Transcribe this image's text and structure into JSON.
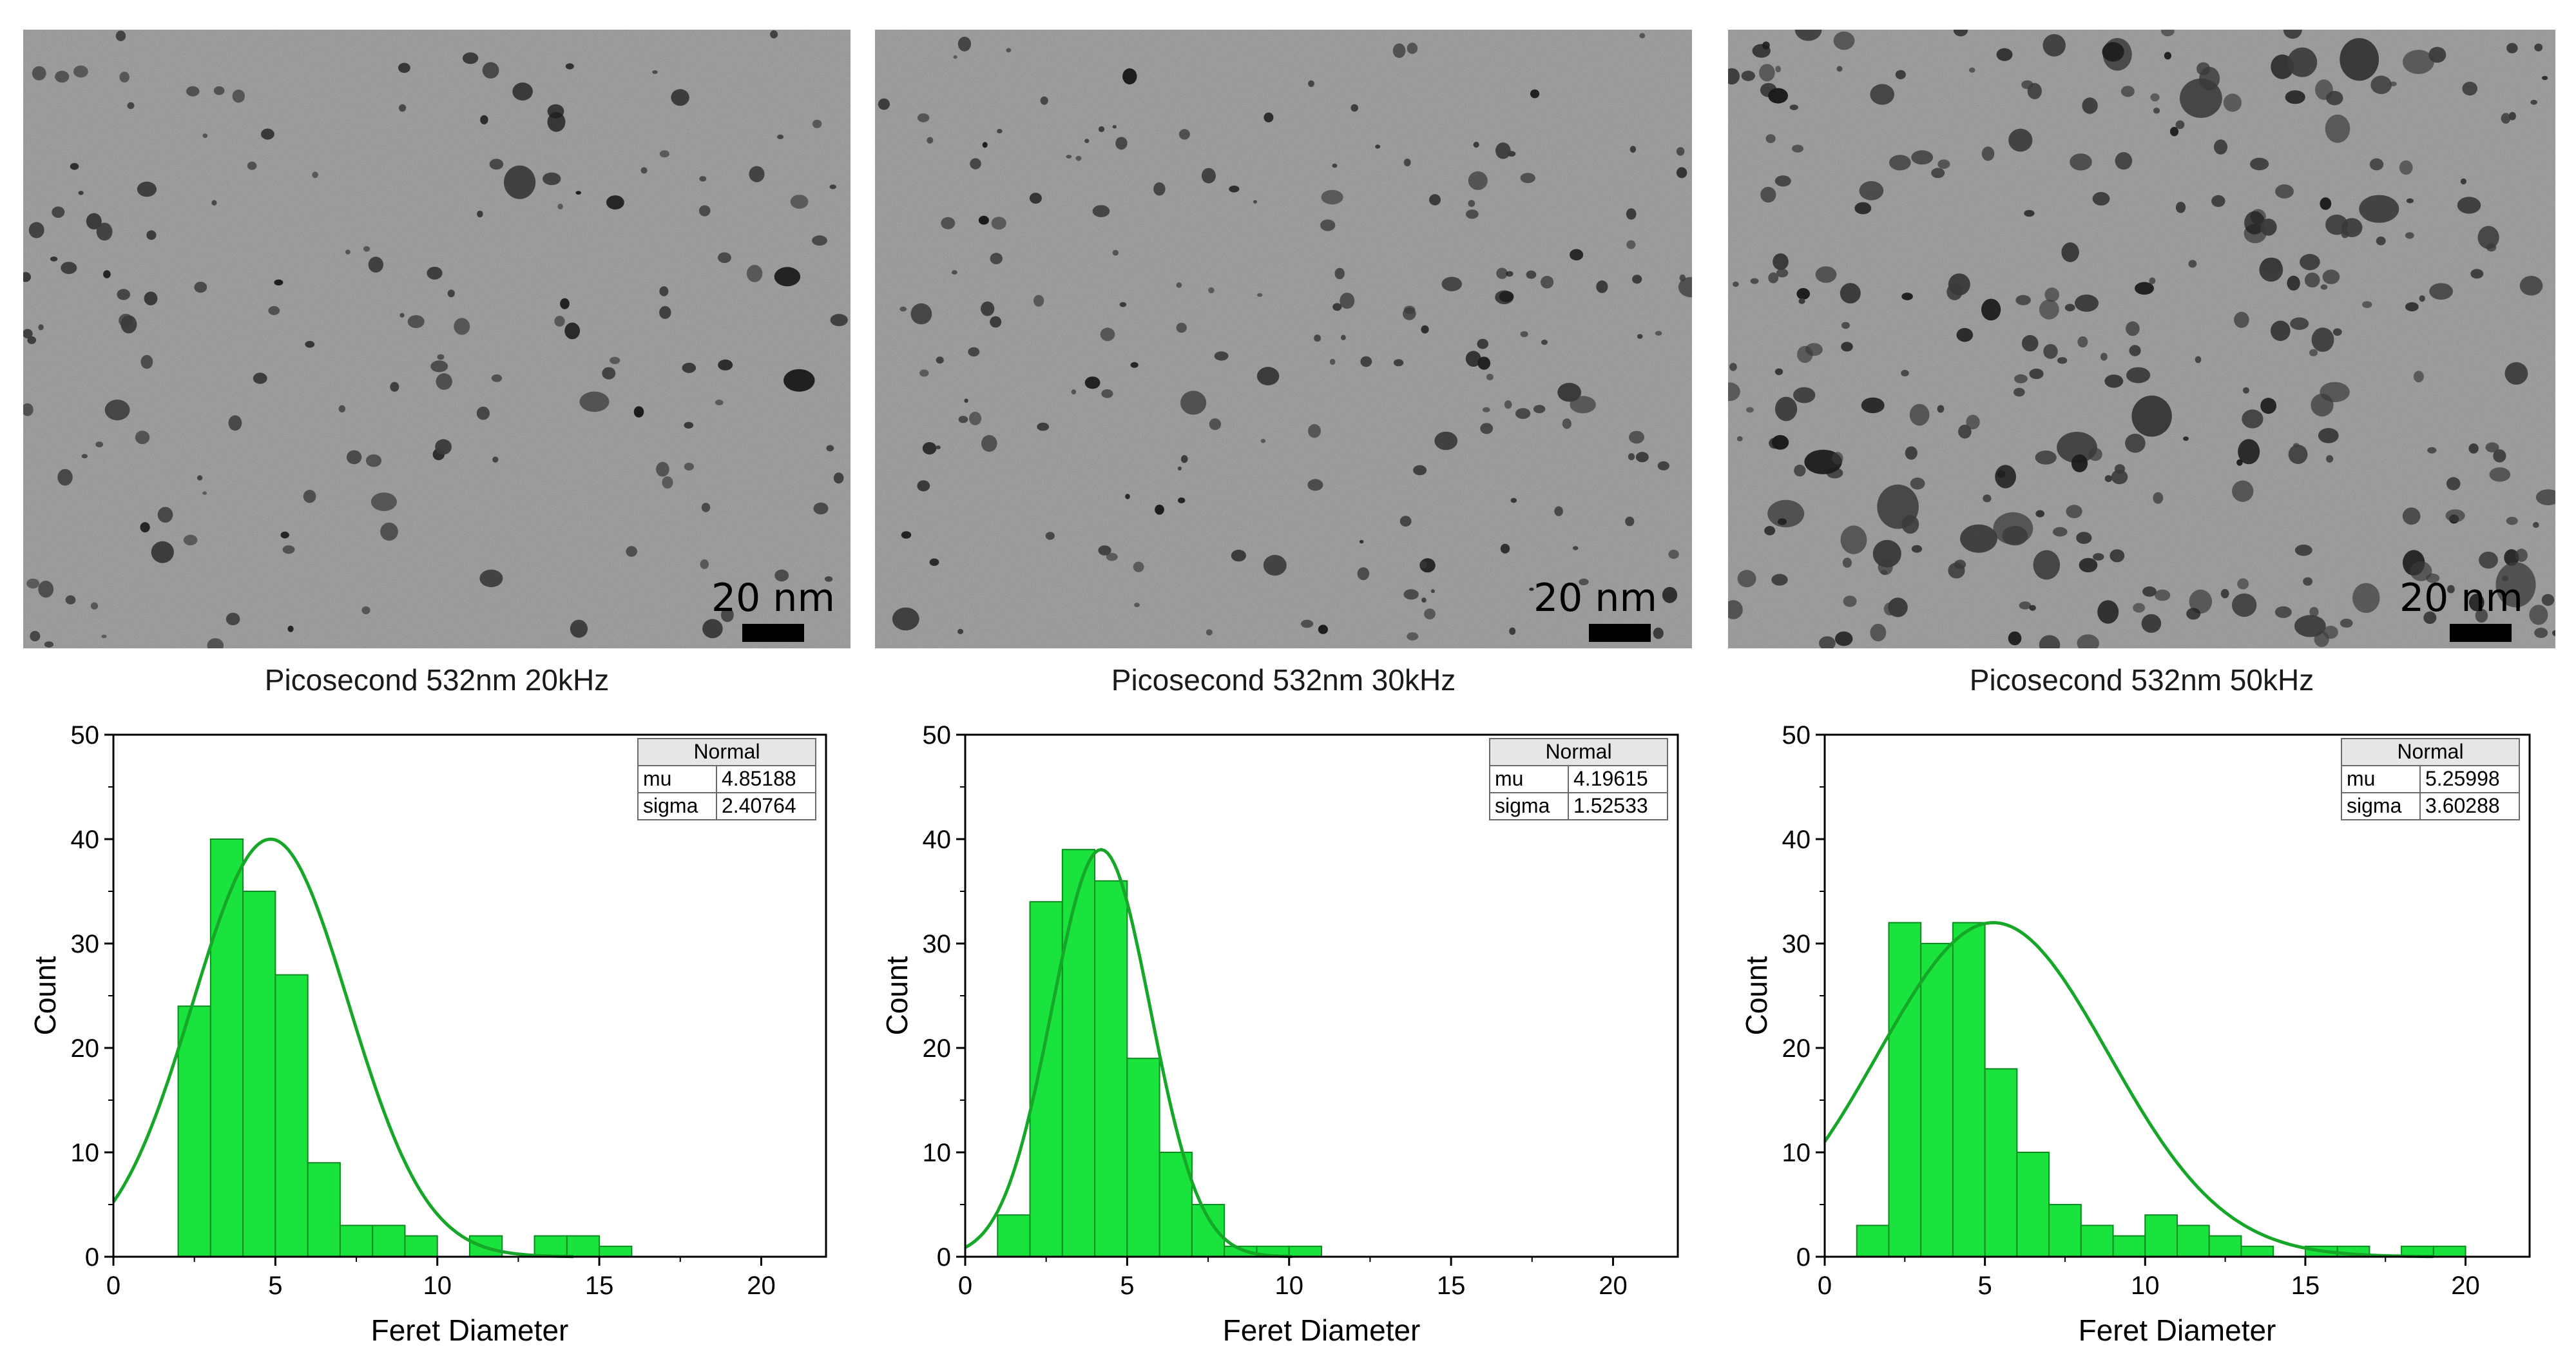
{
  "panels": [
    {
      "caption": "Picosecond 532nm 20kHz",
      "scale_label": "20 nm",
      "particle_density": 1.0
    },
    {
      "caption": "Picosecond 532nm 30kHz",
      "scale_label": "20 nm",
      "particle_density": 1.15
    },
    {
      "caption": "Picosecond 532nm 50kHz",
      "scale_label": "20 nm",
      "particle_density": 1.9
    }
  ],
  "chart_data": [
    {
      "type": "bar",
      "xlabel": "Feret Diameter",
      "ylabel": "Count",
      "xlim": [
        0,
        22
      ],
      "ylim": [
        0,
        50
      ],
      "xticks": [
        0,
        5,
        10,
        15,
        20
      ],
      "yticks": [
        0,
        10,
        20,
        30,
        40,
        50
      ],
      "bin_width": 1,
      "bins": [
        {
          "x": 2,
          "count": 24
        },
        {
          "x": 3,
          "count": 40
        },
        {
          "x": 4,
          "count": 35
        },
        {
          "x": 5,
          "count": 27
        },
        {
          "x": 6,
          "count": 9
        },
        {
          "x": 7,
          "count": 3
        },
        {
          "x": 8,
          "count": 3
        },
        {
          "x": 9,
          "count": 2
        },
        {
          "x": 11,
          "count": 2
        },
        {
          "x": 13,
          "count": 2
        },
        {
          "x": 14,
          "count": 2
        },
        {
          "x": 15,
          "count": 1
        }
      ],
      "fit": {
        "name": "Normal",
        "mu": 4.85188,
        "sigma": 2.40764,
        "peak": 40
      },
      "fit_table": {
        "title": "Normal",
        "rows": [
          [
            "mu",
            "4.85188"
          ],
          [
            "sigma",
            "2.40764"
          ]
        ]
      },
      "legend_position": "top-right",
      "bar_color": "#19e33c",
      "line_color": "#16a628",
      "grid": false
    },
    {
      "type": "bar",
      "xlabel": "Feret Diameter",
      "ylabel": "Count",
      "xlim": [
        0,
        22
      ],
      "ylim": [
        0,
        50
      ],
      "xticks": [
        0,
        5,
        10,
        15,
        20
      ],
      "yticks": [
        0,
        10,
        20,
        30,
        40,
        50
      ],
      "bin_width": 1,
      "bins": [
        {
          "x": 1,
          "count": 4
        },
        {
          "x": 2,
          "count": 34
        },
        {
          "x": 3,
          "count": 39
        },
        {
          "x": 4,
          "count": 36
        },
        {
          "x": 5,
          "count": 19
        },
        {
          "x": 6,
          "count": 10
        },
        {
          "x": 7,
          "count": 5
        },
        {
          "x": 8,
          "count": 1
        },
        {
          "x": 9,
          "count": 1
        },
        {
          "x": 10,
          "count": 1
        }
      ],
      "fit": {
        "name": "Normal",
        "mu": 4.19615,
        "sigma": 1.52533,
        "peak": 39
      },
      "fit_table": {
        "title": "Normal",
        "rows": [
          [
            "mu",
            "4.19615"
          ],
          [
            "sigma",
            "1.52533"
          ]
        ]
      },
      "legend_position": "top-right",
      "bar_color": "#19e33c",
      "line_color": "#16a628",
      "grid": false
    },
    {
      "type": "bar",
      "xlabel": "Feret Diameter",
      "ylabel": "Count",
      "xlim": [
        0,
        22
      ],
      "ylim": [
        0,
        50
      ],
      "xticks": [
        0,
        5,
        10,
        15,
        20
      ],
      "yticks": [
        0,
        10,
        20,
        30,
        40,
        50
      ],
      "bin_width": 1,
      "bins": [
        {
          "x": 1,
          "count": 3
        },
        {
          "x": 2,
          "count": 32
        },
        {
          "x": 3,
          "count": 30
        },
        {
          "x": 4,
          "count": 32
        },
        {
          "x": 5,
          "count": 18
        },
        {
          "x": 6,
          "count": 10
        },
        {
          "x": 7,
          "count": 5
        },
        {
          "x": 8,
          "count": 3
        },
        {
          "x": 9,
          "count": 2
        },
        {
          "x": 10,
          "count": 4
        },
        {
          "x": 11,
          "count": 3
        },
        {
          "x": 12,
          "count": 2
        },
        {
          "x": 13,
          "count": 1
        },
        {
          "x": 15,
          "count": 1
        },
        {
          "x": 16,
          "count": 1
        },
        {
          "x": 18,
          "count": 1
        },
        {
          "x": 19,
          "count": 1
        }
      ],
      "fit": {
        "name": "Normal",
        "mu": 5.25998,
        "sigma": 3.60288,
        "peak": 32
      },
      "fit_table": {
        "title": "Normal",
        "rows": [
          [
            "mu",
            "5.25998"
          ],
          [
            "sigma",
            "3.60288"
          ]
        ]
      },
      "legend_position": "top-right",
      "bar_color": "#19e33c",
      "line_color": "#16a628",
      "grid": false
    }
  ]
}
